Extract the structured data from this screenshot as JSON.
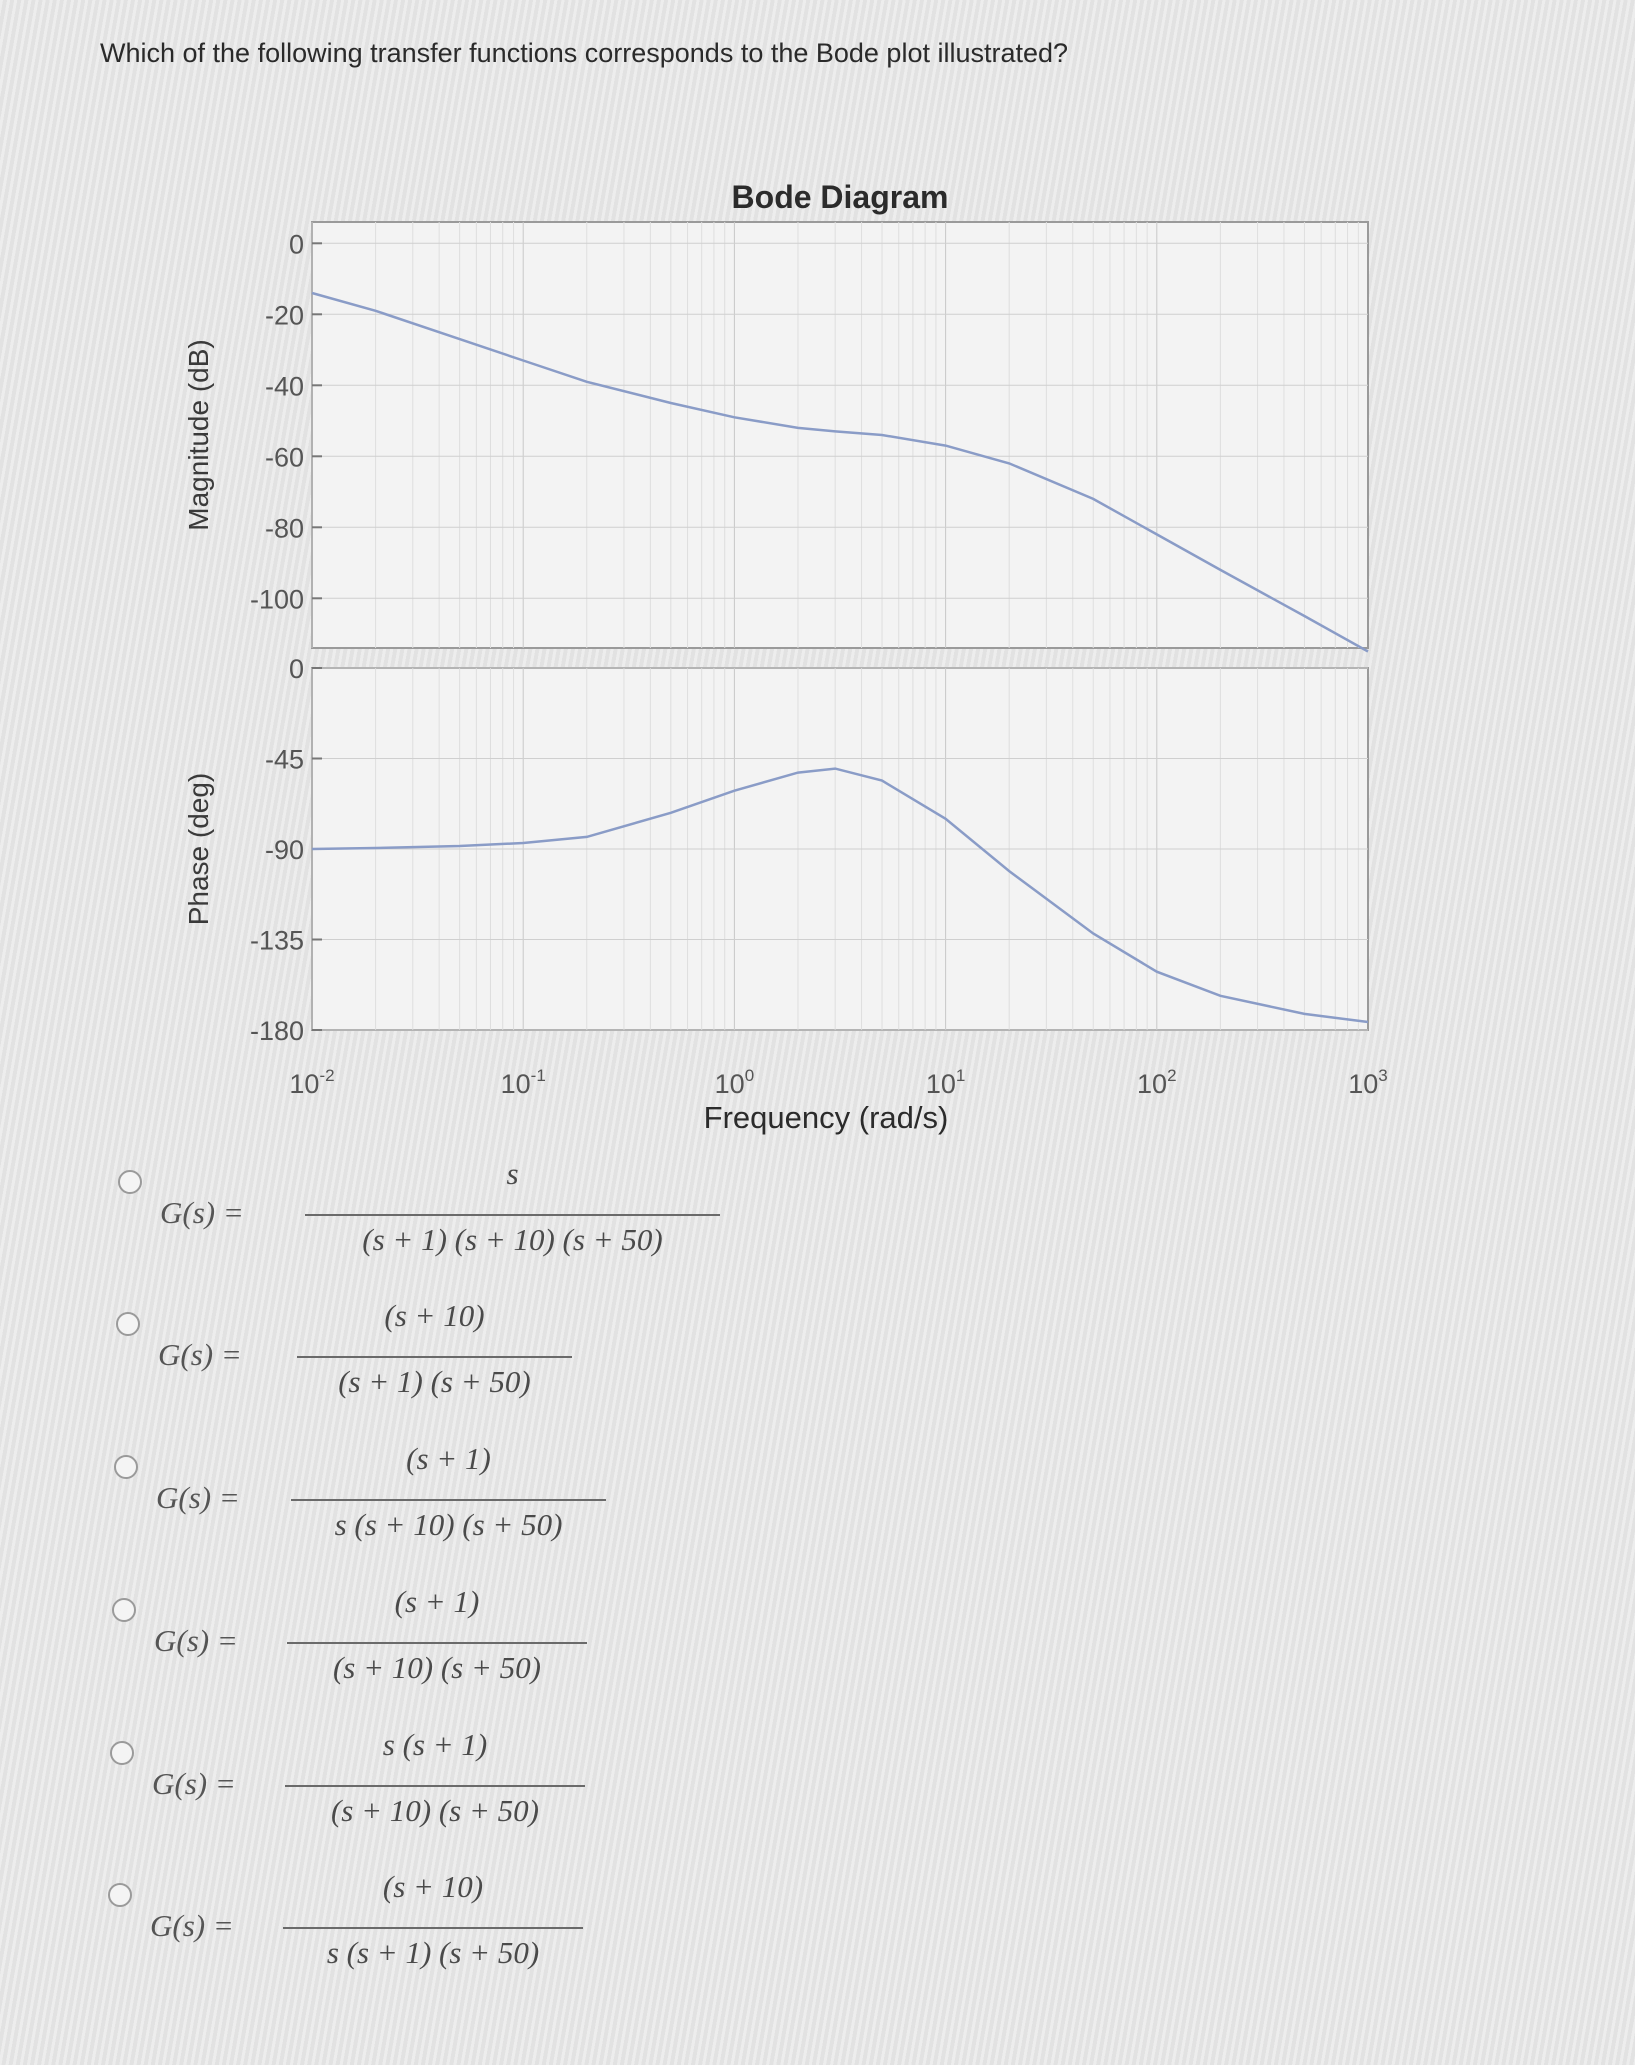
{
  "question": "Which of the following transfer functions corresponds to the Bode plot illustrated?",
  "chart_data": {
    "type": "line",
    "title": "Bode Diagram",
    "xlabel": "Frequency (rad/s)",
    "x_scale": "log",
    "xlim": [
      0.01,
      1000
    ],
    "x_ticks": [
      0.01,
      0.1,
      1,
      10,
      100,
      1000
    ],
    "x_tick_labels": [
      "10-2",
      "10-1",
      "100",
      "101",
      "102",
      "103"
    ],
    "grid": true,
    "color": "#8a9cc7",
    "panels": [
      {
        "ylabel": "Magnitude (dB)",
        "ylim": [
          -114,
          6
        ],
        "y_ticks": [
          0,
          -20,
          -40,
          -60,
          -80,
          -100
        ],
        "y_tick_labels": [
          "0",
          "-20",
          "-40",
          "-60",
          "-80",
          "-100"
        ],
        "series": [
          {
            "x": [
              0.01,
              0.02,
              0.05,
              0.1,
              0.2,
              0.5,
              1,
              2,
              3,
              5,
              10,
              20,
              50,
              100,
              200,
              500,
              1000
            ],
            "values": [
              -14,
              -19,
              -27,
              -33,
              -39,
              -45,
              -49,
              -52,
              -53,
              -54,
              -57,
              -62,
              -72,
              -82,
              -92,
              -105,
              -115
            ]
          }
        ]
      },
      {
        "ylabel": "Phase (deg)",
        "ylim": [
          -180,
          0
        ],
        "y_ticks": [
          0,
          -45,
          -90,
          -135,
          -180
        ],
        "y_tick_labels": [
          "0",
          "-45",
          "-90",
          "-135",
          "-180"
        ],
        "series": [
          {
            "x": [
              0.01,
              0.02,
              0.05,
              0.1,
              0.2,
              0.5,
              1,
              2,
              3,
              5,
              10,
              20,
              50,
              100,
              200,
              500,
              1000
            ],
            "values": [
              -90,
              -89.5,
              -88.5,
              -87,
              -84,
              -72,
              -61,
              -52,
              -50,
              -56,
              -75,
              -101,
              -132,
              -151,
              -163,
              -172,
              -176
            ]
          }
        ]
      }
    ]
  },
  "options": [
    {
      "lhs": "G(s) =",
      "numerator": "s",
      "denominator": "(s + 1) (s + 10) (s + 50)"
    },
    {
      "lhs": "G(s) =",
      "numerator": "(s + 10)",
      "denominator": "(s + 1) (s + 50)"
    },
    {
      "lhs": "G(s) =",
      "numerator": "(s + 1)",
      "denominator": "s (s + 10) (s + 50)"
    },
    {
      "lhs": "G(s) =",
      "numerator": "(s + 1)",
      "denominator": "(s + 10) (s + 50)"
    },
    {
      "lhs": "G(s) =",
      "numerator": "s (s + 1)",
      "denominator": "(s + 10) (s + 50)"
    },
    {
      "lhs": "G(s) =",
      "numerator": "(s + 10)",
      "denominator": "s (s + 1) (s + 50)"
    }
  ]
}
